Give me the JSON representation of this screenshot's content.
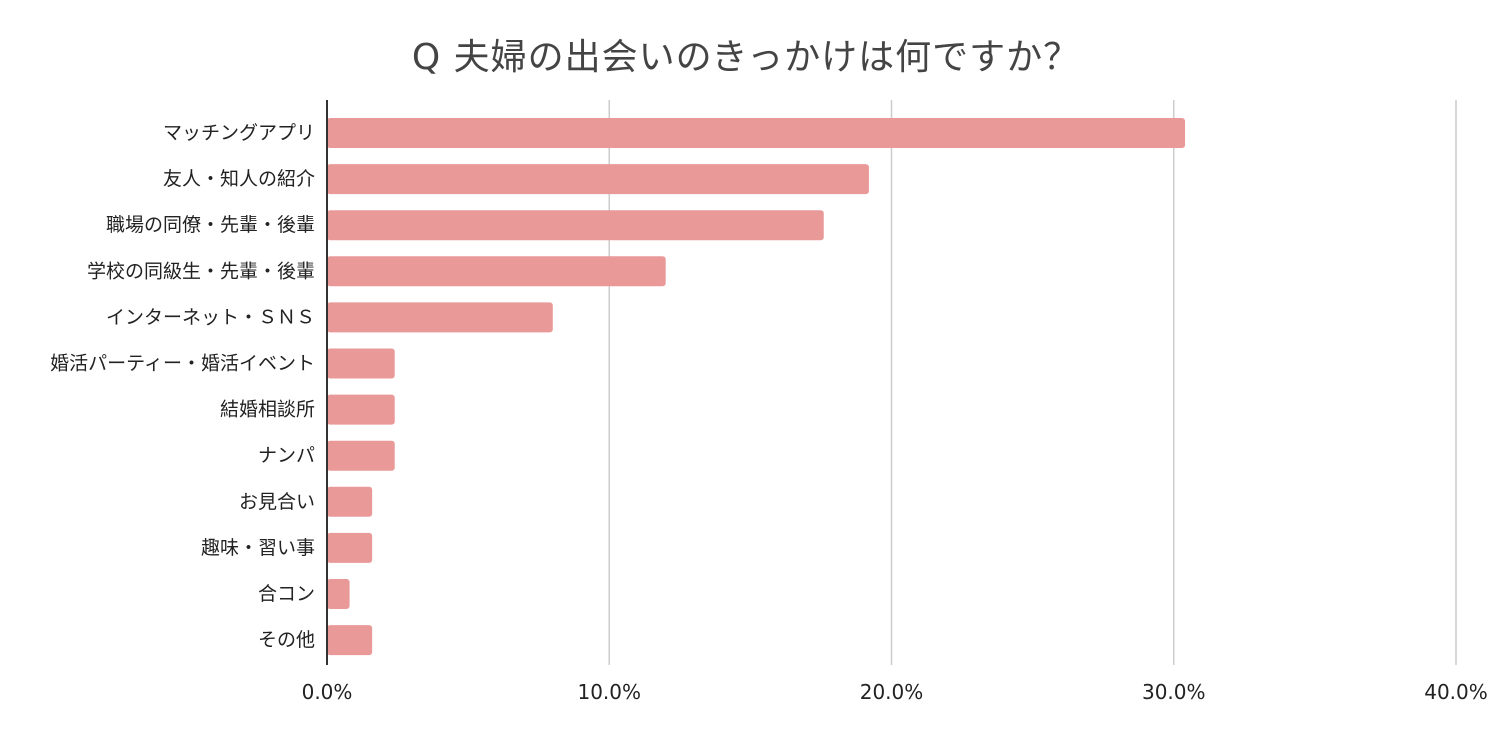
{
  "chart_data": {
    "type": "bar",
    "orientation": "horizontal",
    "title": "Q 夫婦の出会いのきっかけは何ですか？",
    "categories": [
      "マッチングアプリ",
      "友人・知人の紹介",
      "職場の同僚・先輩・後輩",
      "学校の同級生・先輩・後輩",
      "インターネット・ＳＮＳ",
      "婚活パーティー・婚活イベント",
      "結婚相談所",
      "ナンパ",
      "お見合い",
      "趣味・習い事",
      "合コン",
      "その他"
    ],
    "values": [
      30.4,
      19.2,
      17.6,
      12.0,
      8.0,
      2.4,
      2.4,
      2.4,
      1.6,
      1.6,
      0.8,
      1.6
    ],
    "xlim": [
      0,
      40
    ],
    "xticks": [
      0,
      10,
      20,
      30,
      40
    ],
    "tick_labels": [
      "0.0%",
      "10.0%",
      "20.0%",
      "30.0%",
      "40.0%"
    ],
    "grid": true,
    "legend": "none",
    "colors": {
      "bar": "#ea9999",
      "grid": "#cccccc",
      "axis": "#333333",
      "title": "#444444",
      "text": "#222222"
    }
  }
}
